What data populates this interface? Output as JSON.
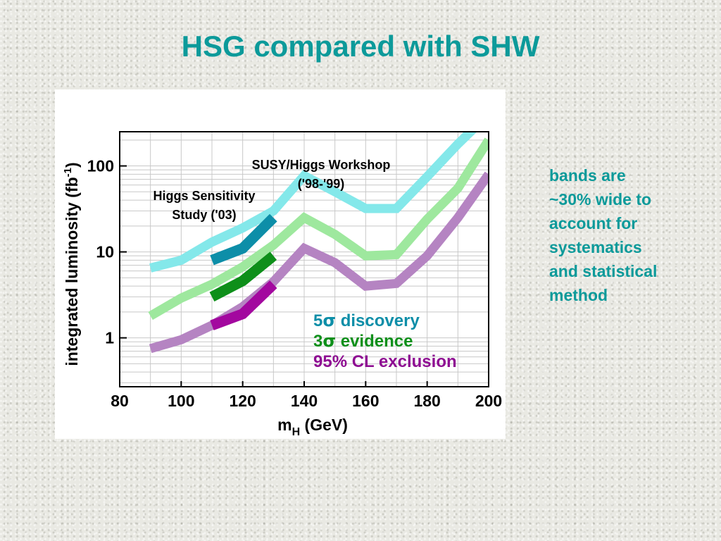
{
  "slide": {
    "title": "HSG compared with SHW",
    "note_lines": [
      "bands are",
      "~30% wide to",
      "account for",
      "systematics",
      "and statistical",
      "method"
    ]
  },
  "chart_data": {
    "type": "line",
    "title": "",
    "xlabel_main": "m",
    "xlabel_sub": "H",
    "xlabel_unit": "(GeV)",
    "ylabel_main": "integrated luminosity (fb",
    "ylabel_sup": "-1",
    "ylabel_close": ")",
    "y_scale": "log",
    "xlim": [
      80,
      200
    ],
    "ylim": [
      0.27,
      250
    ],
    "x_ticks": [
      80,
      100,
      120,
      140,
      160,
      180,
      200
    ],
    "x_tick_labels": [
      "80",
      "100",
      "120",
      "140",
      "160",
      "180",
      "200"
    ],
    "y_ticks": [
      1,
      10,
      100
    ],
    "y_tick_labels": [
      "1",
      "10",
      "100"
    ],
    "grid": true,
    "series": [
      {
        "name": "SUSY/Higgs Workshop 5σ discovery",
        "color": "#84e8ea",
        "x": [
          90,
          100,
          110,
          120,
          130,
          140,
          150,
          160,
          170,
          180,
          190,
          200
        ],
        "y": [
          6.5,
          8,
          13,
          19,
          30,
          77,
          50,
          32,
          32,
          75,
          180,
          400
        ]
      },
      {
        "name": "SUSY/Higgs Workshop 3σ evidence",
        "color": "#9ee89e",
        "x": [
          90,
          100,
          110,
          120,
          130,
          140,
          150,
          160,
          170,
          180,
          190,
          200
        ],
        "y": [
          1.8,
          2.9,
          4.2,
          6.7,
          12,
          25,
          16,
          9,
          9.3,
          24,
          55,
          200
        ]
      },
      {
        "name": "SUSY/Higgs Workshop 95% CL exclusion",
        "color": "#b584c2",
        "x": [
          90,
          100,
          110,
          120,
          130,
          140,
          150,
          160,
          170,
          180,
          190,
          200
        ],
        "y": [
          0.75,
          0.95,
          1.4,
          2.3,
          4.5,
          11,
          7.5,
          4,
          4.3,
          9,
          25,
          80
        ]
      },
      {
        "name": "Higgs Sensitivity Study 5σ discovery",
        "color": "#0d8ea8",
        "x": [
          110,
          120,
          130
        ],
        "y": [
          8,
          11,
          25
        ]
      },
      {
        "name": "Higgs Sensitivity Study 3σ evidence",
        "color": "#0e8f1a",
        "x": [
          110,
          120,
          130
        ],
        "y": [
          3,
          4.6,
          9
        ]
      },
      {
        "name": "Higgs Sensitivity Study 95% CL exclusion",
        "color": "#a3089f",
        "x": [
          110,
          120,
          130
        ],
        "y": [
          1.4,
          1.9,
          4.2
        ]
      }
    ],
    "annotations": {
      "shw_line1": "SUSY/Higgs Workshop",
      "shw_line2": "('98-'99)",
      "hsg_line1": "Higgs Sensitivity",
      "hsg_line2": "Study ('03)"
    },
    "legend": {
      "position": "bottom-right",
      "entries": [
        {
          "prefix": "5",
          "symbol": "σ",
          "text": " discovery",
          "color": "#0d8ea8"
        },
        {
          "prefix": "3",
          "symbol": "σ",
          "text": " evidence",
          "color": "#0e8f1a"
        },
        {
          "prefix": "95% CL exclusion",
          "symbol": "",
          "text": "",
          "color": "#8e0d92"
        }
      ]
    }
  }
}
